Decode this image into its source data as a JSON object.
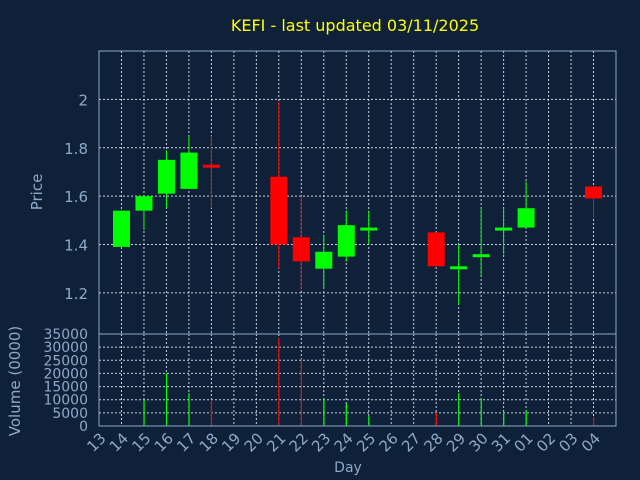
{
  "colors": {
    "background": "#0f2138",
    "plot_background": "#0f2138",
    "frame": "#8ea9c9",
    "grid": "#c8d2de",
    "text": "#8ea9c9",
    "title": "#ffff00",
    "up": "#00ff00",
    "down": "#ff0000"
  },
  "chart_data": [
    {
      "type": "candlestick",
      "title": "KEFI - last updated 03/11/2025",
      "ylabel": "Price",
      "ylim": [
        1.03,
        2.2
      ],
      "yticks": [
        1.2,
        1.4,
        1.6,
        1.8,
        2.0
      ],
      "ytick_labels": [
        "1.2",
        "1.4",
        "1.6",
        "1.8",
        "2"
      ],
      "grid": true,
      "categories": [
        "13",
        "14",
        "15",
        "16",
        "17",
        "18",
        "19",
        "20",
        "21",
        "22",
        "23",
        "24",
        "25",
        "26",
        "27",
        "28",
        "29",
        "30",
        "31",
        "01",
        "02",
        "03",
        "04"
      ],
      "candles": [
        {
          "x": "13",
          "open": 1.39,
          "close": 1.54,
          "high": 1.54,
          "low": 1.39
        },
        {
          "x": "14",
          "open": 1.54,
          "close": 1.6,
          "high": 1.6,
          "low": 1.46
        },
        {
          "x": "15",
          "open": 1.61,
          "close": 1.75,
          "high": 1.79,
          "low": 1.55
        },
        {
          "x": "16",
          "open": 1.63,
          "close": 1.78,
          "high": 1.85,
          "low": 1.63
        },
        {
          "x": "17",
          "open": 1.73,
          "close": 1.72,
          "high": 1.85,
          "low": 1.55
        },
        {
          "x": "20",
          "open": 1.68,
          "close": 1.4,
          "high": 1.99,
          "low": 1.3
        },
        {
          "x": "21",
          "open": 1.43,
          "close": 1.33,
          "high": 1.6,
          "low": 1.21
        },
        {
          "x": "22",
          "open": 1.3,
          "close": 1.37,
          "high": 1.44,
          "low": 1.22
        },
        {
          "x": "23",
          "open": 1.35,
          "close": 1.48,
          "high": 1.54,
          "low": 1.33
        },
        {
          "x": "24",
          "open": 1.46,
          "close": 1.47,
          "high": 1.54,
          "low": 1.4
        },
        {
          "x": "27",
          "open": 1.45,
          "close": 1.31,
          "high": 1.45,
          "low": 1.31
        },
        {
          "x": "28",
          "open": 1.3,
          "close": 1.31,
          "high": 1.4,
          "low": 1.15
        },
        {
          "x": "29",
          "open": 1.35,
          "close": 1.36,
          "high": 1.55,
          "low": 1.27
        },
        {
          "x": "30",
          "open": 1.46,
          "close": 1.47,
          "high": 1.55,
          "low": 1.36
        },
        {
          "x": "31",
          "open": 1.47,
          "close": 1.55,
          "high": 1.66,
          "low": 1.47
        },
        {
          "x": "03",
          "open": 1.64,
          "close": 1.59,
          "high": 1.64,
          "low": 1.51
        }
      ]
    },
    {
      "type": "bar",
      "ylabel": "Volume (0000)",
      "xlabel": "Day",
      "ylim": [
        0,
        35000
      ],
      "yticks": [
        0,
        5000,
        10000,
        15000,
        20000,
        25000,
        30000,
        35000
      ],
      "ytick_labels": [
        "0",
        "5000",
        "10000",
        "15000",
        "20000",
        "25000",
        "30000",
        "35000"
      ],
      "grid": true,
      "x": [
        "14",
        "15",
        "16",
        "17",
        "20",
        "21",
        "22",
        "23",
        "24",
        "27",
        "28",
        "29",
        "30",
        "31",
        "03"
      ],
      "values": [
        10000,
        20000,
        12500,
        10000,
        33500,
        25500,
        10500,
        8500,
        4000,
        5000,
        12500,
        10500,
        5500,
        6000,
        3500
      ],
      "directions": [
        "up",
        "up",
        "up",
        "down",
        "down",
        "down",
        "up",
        "up",
        "up",
        "down",
        "up",
        "up",
        "up",
        "up",
        "down"
      ]
    }
  ]
}
